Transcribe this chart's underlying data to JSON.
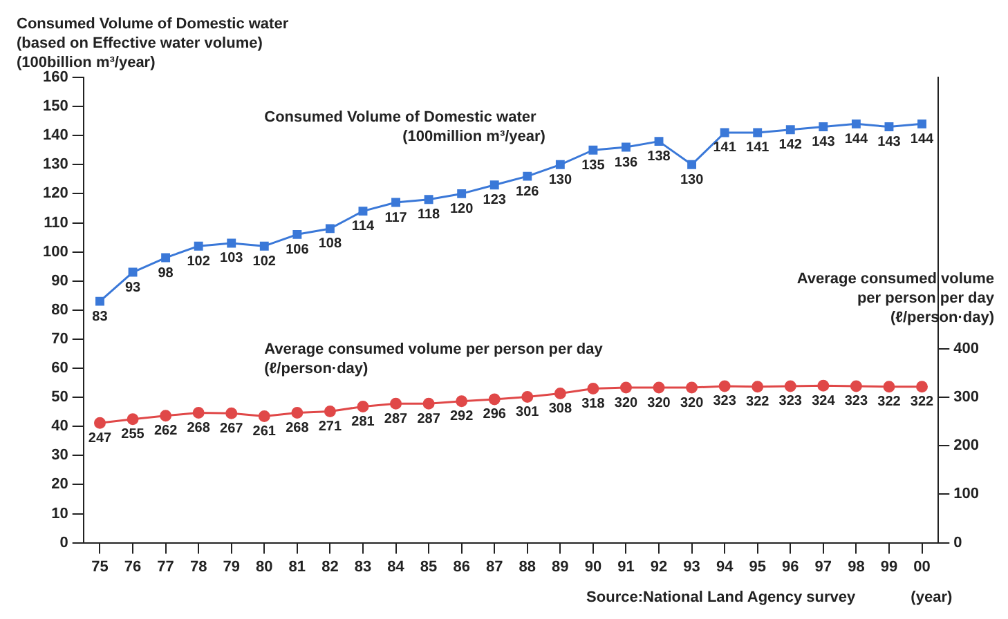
{
  "chart_data": {
    "type": "line",
    "ylabel": "Consumed Volume of Domestic water\n(based on Effective water volume)\n(100billion m³/year)",
    "y2label": "Average consumed volume\nper person per day\n(ℓ/person·day)",
    "xlabel": "(year)",
    "annotations": [
      "Source:National Land Agency survey"
    ],
    "categories": [
      "75",
      "76",
      "77",
      "78",
      "79",
      "80",
      "81",
      "82",
      "83",
      "84",
      "85",
      "86",
      "87",
      "88",
      "89",
      "90",
      "91",
      "92",
      "93",
      "94",
      "95",
      "96",
      "97",
      "98",
      "99",
      "00"
    ],
    "series": [
      {
        "name": "Consumed Volume of Domestic water\n(100million m³/year)",
        "color": "#3a78d8",
        "marker": "square",
        "values": [
          83,
          93,
          98,
          102,
          103,
          102,
          106,
          108,
          114,
          117,
          118,
          120,
          123,
          126,
          130,
          135,
          136,
          138,
          130,
          141,
          141,
          142,
          143,
          144,
          143,
          144
        ]
      },
      {
        "name": "Average consumed volume per person per day\n(ℓ/person·day)",
        "color": "#e04848",
        "marker": "circle",
        "axis": "y2",
        "values": [
          247,
          255,
          262,
          268,
          267,
          261,
          268,
          271,
          281,
          287,
          287,
          292,
          296,
          301,
          308,
          318,
          320,
          320,
          320,
          323,
          322,
          323,
          324,
          323,
          322,
          322
        ]
      }
    ],
    "ylim": [
      0,
      160
    ],
    "yticks": [
      0,
      10,
      20,
      30,
      40,
      50,
      60,
      70,
      80,
      90,
      100,
      110,
      120,
      130,
      140,
      150,
      160
    ],
    "y2lim": [
      0,
      960
    ],
    "y2ticks": [
      0,
      100,
      200,
      300,
      400
    ],
    "data_labels": true,
    "grid": false,
    "legend": false,
    "line_style": "solid"
  }
}
